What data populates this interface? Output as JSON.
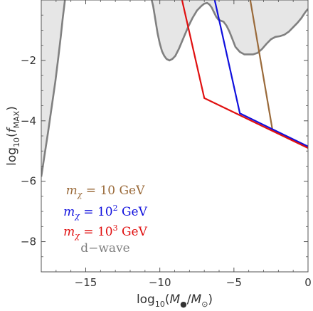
{
  "chart_data": {
    "type": "line",
    "title": "",
    "xlabel": "log10(M●/M⊙)",
    "ylabel": "log10(fMAX)",
    "xlim": [
      -18,
      0
    ],
    "ylim": [
      -9,
      0
    ],
    "xticks": [
      -15,
      -10,
      -5,
      0
    ],
    "yticks": [
      -8,
      -6,
      -4,
      -2
    ],
    "xtick_labels": [
      "−15",
      "−10",
      "−5",
      "0"
    ],
    "ytick_labels": [
      "−8",
      "−6",
      "−4",
      "−2"
    ],
    "grid": false,
    "legend_position": "bottom-left",
    "series": [
      {
        "name": "mχ = 10 GeV",
        "label_parts": {
          "pre": "m",
          "sub": "χ",
          "mid": " = 10",
          "sup": "",
          "post": " GeV"
        },
        "color": "#9a6a3a",
        "x": [
          -3.9,
          -2.4,
          0.0
        ],
        "y": [
          0.0,
          -4.3,
          -4.85
        ]
      },
      {
        "name": "mχ = 10^2 GeV",
        "label_parts": {
          "pre": "m",
          "sub": "χ",
          "mid": " = 10",
          "sup": "2",
          "post": " GeV"
        },
        "color": "#1010dd",
        "x": [
          -6.3,
          -4.6,
          0.0
        ],
        "y": [
          0.0,
          -3.75,
          -4.85
        ]
      },
      {
        "name": "mχ = 10^3 GeV",
        "label_parts": {
          "pre": "m",
          "sub": "χ",
          "mid": " = 10",
          "sup": "3",
          "post": " GeV"
        },
        "color": "#e01010",
        "x": [
          -8.5,
          -7.0,
          0.0
        ],
        "y": [
          0.0,
          -3.25,
          -4.9
        ]
      },
      {
        "name": "d−wave",
        "label_parts": {
          "pre": "d−wave",
          "sub": "",
          "mid": "",
          "sup": "",
          "post": ""
        },
        "color": "#808080",
        "fill": "#e6e6e6",
        "regions": [
          {
            "x": [
              -18,
              -17.95,
              -17.8,
              -17.55,
              -17.3,
              -17.05,
              -16.85,
              -16.68,
              -16.55,
              -16.45,
              -16.4,
              -16.38
            ],
            "y": [
              -5.85,
              -5.7,
              -5.2,
              -4.4,
              -3.55,
              -2.7,
              -1.9,
              -1.2,
              -0.6,
              -0.2,
              0.0,
              0.1
            ]
          },
          {
            "x": [
              -10.6,
              -10.45,
              -10.3,
              -10.15,
              -10.0,
              -9.85,
              -9.7,
              -9.55,
              -9.35,
              -9.15,
              -8.95,
              -8.7,
              -8.4,
              -8.1,
              -7.8,
              -7.5,
              -7.2,
              -7.0,
              -6.8,
              -6.65,
              -6.5,
              -6.35,
              -6.2,
              -6.05,
              -5.9,
              -5.7,
              -5.5,
              -5.3,
              -5.1,
              -4.9,
              -4.6,
              -4.3,
              -4.0,
              -3.7,
              -3.4,
              -3.1,
              -2.8,
              -2.5,
              -2.2,
              -1.9,
              -1.6,
              -1.3,
              -1.0,
              -0.7,
              -0.45,
              -0.25,
              -0.1,
              0.0
            ],
            "y": [
              0.1,
              -0.2,
              -0.65,
              -1.1,
              -1.45,
              -1.7,
              -1.85,
              -1.95,
              -2.0,
              -1.95,
              -1.85,
              -1.6,
              -1.25,
              -0.9,
              -0.6,
              -0.35,
              -0.2,
              -0.12,
              -0.1,
              -0.15,
              -0.25,
              -0.4,
              -0.55,
              -0.65,
              -0.68,
              -0.72,
              -0.85,
              -1.05,
              -1.3,
              -1.55,
              -1.72,
              -1.8,
              -1.8,
              -1.8,
              -1.75,
              -1.62,
              -1.45,
              -1.3,
              -1.22,
              -1.2,
              -1.15,
              -1.05,
              -0.9,
              -0.75,
              -0.6,
              -0.45,
              -0.35,
              -0.3
            ]
          }
        ]
      }
    ]
  }
}
